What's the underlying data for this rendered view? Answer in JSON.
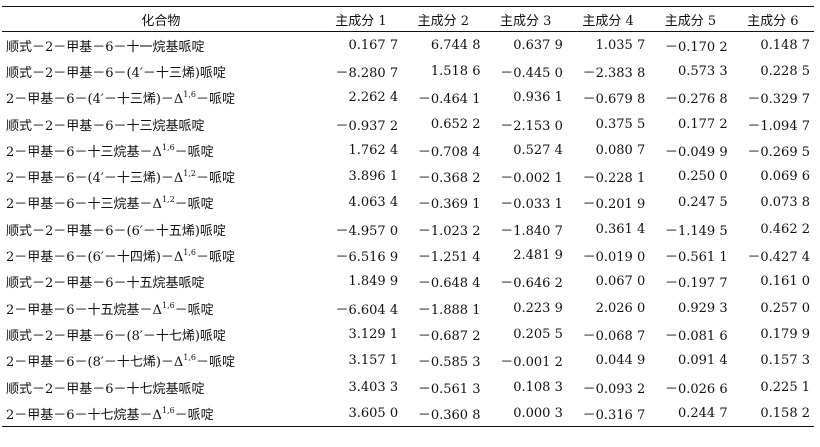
{
  "table": {
    "headers": [
      "化合物",
      "主成分 1",
      "主成分 2",
      "主成分 3",
      "主成分 4",
      "主成分 5",
      "主成分 6"
    ],
    "rows": [
      {
        "name": "顺式－2－甲基－6－十一烷基哌啶",
        "values": [
          "0.167 7",
          "6.744 8",
          "0.637 9",
          "1.035 7",
          "－0.170 2",
          "0.148 7"
        ]
      },
      {
        "name": "顺式－2－甲基－6－(4′－十三烯)哌啶",
        "values": [
          "－8.280 7",
          "1.518 6",
          "－0.445 0",
          "－2.383 8",
          "0.573 3",
          "0.228 5"
        ]
      },
      {
        "name_pre": "2－甲基－6－(4′－十三烯)－Δ",
        "name_sup": "1,6",
        "name_post": "－哌啶",
        "values": [
          "2.262 4",
          "－0.464 1",
          "0.936 1",
          "－0.679 8",
          "－0.276 8",
          "－0.329 7"
        ]
      },
      {
        "name": "顺式－2－甲基－6－十三烷基哌啶",
        "values": [
          "－0.937 2",
          "0.652 2",
          "－2.153 0",
          "0.375 5",
          "0.177 2",
          "－1.094 7"
        ]
      },
      {
        "name_pre": "2－甲基－6－十三烷基－Δ",
        "name_sup": "1,6",
        "name_post": "－哌啶",
        "values": [
          "1.762 4",
          "－0.708 4",
          "0.527 4",
          "0.080 7",
          "－0.049 9",
          "－0.269 5"
        ]
      },
      {
        "name_pre": "2－甲基－6－(4′－十三烯)－Δ",
        "name_sup": "1,2",
        "name_post": "－哌啶",
        "values": [
          "3.896 1",
          "－0.368 2",
          "－0.002 1",
          "－0.228 1",
          "0.250 0",
          "0.069 6"
        ]
      },
      {
        "name_pre": "2－甲基－6－十三烷基－Δ",
        "name_sup": "1,2",
        "name_post": "－哌啶",
        "values": [
          "4.063 4",
          "－0.369 1",
          "－0.033 1",
          "－0.201 9",
          "0.247 5",
          "0.073 8"
        ]
      },
      {
        "name": "顺式－2－甲基－6－(6′－十五烯)哌啶",
        "values": [
          "－4.957 0",
          "－1.023 2",
          "－1.840 7",
          "0.361 4",
          "－1.149 5",
          "0.462 2"
        ]
      },
      {
        "name_pre": "2－甲基－6－(6′－十四烯)－Δ",
        "name_sup": "1,6",
        "name_post": "－哌啶",
        "values": [
          "－6.516 9",
          "－1.251 4",
          "2.481 9",
          "－0.019 0",
          "－0.561 1",
          "－0.427 4"
        ]
      },
      {
        "name": "顺式－2－甲基－6－十五烷基哌啶",
        "values": [
          "1.849 9",
          "－0.648 4",
          "－0.646 2",
          "0.067 0",
          "－0.197 7",
          "0.161 0"
        ]
      },
      {
        "name_pre": "2－甲基－6－十五烷基－Δ",
        "name_sup": "1,6",
        "name_post": "－哌啶",
        "values": [
          "－6.604 4",
          "－1.888 1",
          "0.223 9",
          "2.026 0",
          "0.929 3",
          "0.257 0"
        ]
      },
      {
        "name": "顺式－2－甲基－6－(8′－十七烯)哌啶",
        "values": [
          "3.129 1",
          "－0.687 2",
          "0.205 5",
          "－0.068 7",
          "－0.081 6",
          "0.179 9"
        ]
      },
      {
        "name_pre": "2－甲基－6－(8′－十七烯)－Δ",
        "name_sup": "1,6",
        "name_post": "－哌啶",
        "values": [
          "3.157 1",
          "－0.585 3",
          "－0.001 2",
          "0.044 9",
          "0.091 4",
          "0.157 3"
        ]
      },
      {
        "name": "顺式－2－甲基－6－十七烷基哌啶",
        "values": [
          "3.403 3",
          "－0.561 3",
          "0.108 3",
          "－0.093 2",
          "－0.026 6",
          "0.225 1"
        ]
      },
      {
        "name_pre": "2－甲基－6－十七烷基－Δ",
        "name_sup": "1,6",
        "name_post": "－哌啶",
        "values": [
          "3.605 0",
          "－0.360 8",
          "0.000 3",
          "－0.316 7",
          "0.244 7",
          "0.158 2"
        ]
      }
    ]
  }
}
